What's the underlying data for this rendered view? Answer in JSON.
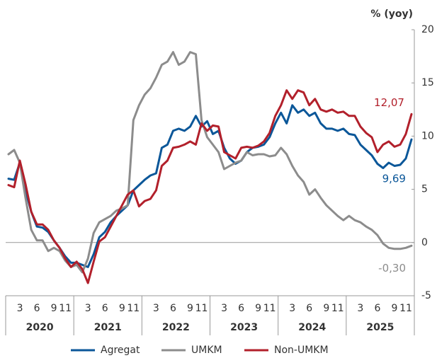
{
  "chart_data": {
    "type": "line",
    "y_axis_label": "% (yoy)",
    "years": [
      "2020",
      "2021",
      "2022",
      "2023",
      "2024",
      "2025"
    ],
    "categories": [
      null,
      null,
      "3",
      null,
      null,
      "6",
      null,
      null,
      "9",
      null,
      "11",
      null,
      null,
      null,
      "3",
      null,
      null,
      "6",
      null,
      null,
      "9",
      null,
      "11",
      null,
      null,
      null,
      "3",
      null,
      null,
      "6",
      null,
      null,
      "9",
      null,
      "11",
      null,
      null,
      null,
      "3",
      null,
      null,
      "6",
      null,
      null,
      "9",
      null,
      "11",
      null,
      null,
      null,
      "3",
      null,
      null,
      "6",
      null,
      null,
      "9",
      null,
      "11",
      null,
      null,
      null,
      "3",
      null,
      null,
      "6",
      null,
      null,
      "9",
      null,
      "11",
      null
    ],
    "ylim": [
      -5,
      20
    ],
    "yticks": [
      -5,
      0,
      5,
      10,
      15,
      20
    ],
    "series": [
      {
        "name": "Agregat",
        "color": "#0b5799",
        "values": [
          6.0,
          5.9,
          7.5,
          4.9,
          2.9,
          1.5,
          1.4,
          1.0,
          0.2,
          -0.5,
          -1.3,
          -1.9,
          -1.9,
          -2.1,
          -2.3,
          -1.1,
          0.5,
          1.0,
          1.9,
          2.5,
          3.0,
          3.5,
          4.9,
          5.4,
          5.9,
          6.3,
          6.5,
          8.9,
          9.2,
          10.5,
          10.7,
          10.5,
          10.9,
          11.9,
          10.9,
          11.4,
          10.2,
          10.5,
          8.9,
          7.9,
          7.4,
          7.7,
          8.5,
          8.9,
          9.0,
          9.2,
          9.9,
          11.2,
          12.2,
          11.2,
          12.9,
          12.2,
          12.5,
          11.9,
          12.2,
          11.2,
          10.7,
          10.7,
          10.5,
          10.7,
          10.2,
          10.1,
          9.2,
          8.7,
          8.2,
          7.4,
          7.0,
          7.5,
          7.2,
          7.3,
          7.9,
          9.69
        ],
        "value_labels": [
          null,
          null,
          null,
          null,
          null,
          null,
          null,
          null,
          null,
          null,
          null,
          null,
          null,
          null,
          null,
          null,
          null,
          null,
          null,
          null,
          null,
          null,
          null,
          null,
          null,
          null,
          null,
          null,
          null,
          null,
          null,
          null,
          null,
          null,
          null,
          null,
          null,
          null,
          null,
          null,
          null,
          null,
          null,
          null,
          null,
          null,
          null,
          null,
          null,
          null,
          null,
          null,
          null,
          null,
          null,
          null,
          null,
          null,
          null,
          null,
          null,
          null,
          null,
          null,
          null,
          null,
          null,
          null,
          null,
          null,
          null,
          "9,69"
        ]
      },
      {
        "name": "UMKM",
        "color": "#8c8c8c",
        "values": [
          8.3,
          8.7,
          7.5,
          4.2,
          1.2,
          0.2,
          0.2,
          -0.8,
          -0.5,
          -0.8,
          -1.7,
          -2.3,
          -2.1,
          -2.8,
          -1.5,
          0.9,
          1.9,
          2.2,
          2.5,
          3.0,
          3.2,
          3.5,
          11.5,
          12.9,
          13.9,
          14.5,
          15.5,
          16.7,
          17.0,
          17.9,
          16.7,
          17.0,
          17.9,
          17.7,
          11.5,
          9.9,
          9.2,
          8.5,
          6.9,
          7.2,
          7.5,
          7.7,
          8.5,
          8.2,
          8.3,
          8.3,
          8.1,
          8.2,
          8.9,
          8.3,
          7.2,
          6.3,
          5.7,
          4.5,
          5.0,
          4.2,
          3.5,
          3.0,
          2.5,
          2.1,
          2.5,
          2.1,
          1.9,
          1.5,
          1.2,
          0.7,
          -0.1,
          -0.5,
          -0.6,
          -0.6,
          -0.5,
          -0.3
        ],
        "value_labels": [
          null,
          null,
          null,
          null,
          null,
          null,
          null,
          null,
          null,
          null,
          null,
          null,
          null,
          null,
          null,
          null,
          null,
          null,
          null,
          null,
          null,
          null,
          null,
          null,
          null,
          null,
          null,
          null,
          null,
          null,
          null,
          null,
          null,
          null,
          null,
          null,
          null,
          null,
          null,
          null,
          null,
          null,
          null,
          null,
          null,
          null,
          null,
          null,
          null,
          null,
          null,
          null,
          null,
          null,
          null,
          null,
          null,
          null,
          null,
          null,
          null,
          null,
          null,
          null,
          null,
          null,
          null,
          null,
          null,
          null,
          null,
          "-0,30"
        ]
      },
      {
        "name": "Non-UMKM",
        "color": "#b2202b",
        "values": [
          5.4,
          5.2,
          7.7,
          5.5,
          2.9,
          1.7,
          1.7,
          1.2,
          0.2,
          -0.5,
          -1.5,
          -2.3,
          -1.8,
          -2.5,
          -3.8,
          -1.8,
          0.1,
          0.5,
          1.5,
          2.5,
          3.5,
          4.5,
          4.9,
          3.4,
          3.9,
          4.1,
          4.9,
          7.2,
          7.7,
          8.9,
          9.0,
          9.2,
          9.5,
          9.2,
          11.2,
          10.5,
          11.0,
          10.9,
          8.5,
          8.2,
          7.9,
          8.9,
          9.0,
          8.9,
          9.1,
          9.5,
          10.3,
          11.9,
          12.9,
          14.3,
          13.5,
          14.3,
          14.1,
          12.9,
          13.5,
          12.5,
          12.3,
          12.5,
          12.2,
          12.3,
          11.9,
          11.9,
          10.9,
          10.3,
          9.9,
          8.5,
          9.2,
          9.5,
          9.0,
          9.2,
          10.2,
          12.07
        ],
        "value_labels": [
          null,
          null,
          null,
          null,
          null,
          null,
          null,
          null,
          null,
          null,
          null,
          null,
          null,
          null,
          null,
          null,
          null,
          null,
          null,
          null,
          null,
          null,
          null,
          null,
          null,
          null,
          null,
          null,
          null,
          null,
          null,
          null,
          null,
          null,
          null,
          null,
          null,
          null,
          null,
          null,
          null,
          null,
          null,
          null,
          null,
          null,
          null,
          null,
          null,
          null,
          null,
          null,
          null,
          null,
          null,
          null,
          null,
          null,
          null,
          null,
          null,
          null,
          null,
          null,
          null,
          null,
          null,
          null,
          null,
          null,
          null,
          "12,07"
        ]
      }
    ],
    "zero_line": true,
    "legend": "bottom"
  }
}
